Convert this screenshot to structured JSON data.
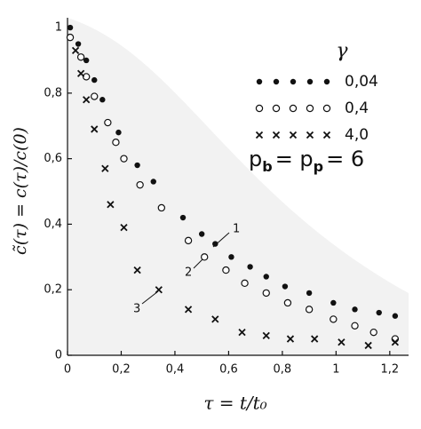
{
  "chart_data": {
    "type": "scatter",
    "x_label": "τ = t/t₀",
    "y_label": "c̃(τ) = c(τ)/c(0)",
    "legend_title": "γ",
    "formula": [
      "p",
      "b",
      "= p",
      "p",
      "= 6"
    ],
    "annotations": [
      "1",
      "2",
      "3"
    ],
    "xlim": [
      0,
      1.27
    ],
    "ylim": [
      0,
      1.03
    ],
    "xticks": [
      0,
      {
        "value": 0.2,
        "label": "0,2"
      },
      {
        "value": 0.4,
        "label": "0,4"
      },
      {
        "value": 0.6,
        "label": "0,6"
      },
      {
        "value": 0.8,
        "label": "0,8"
      },
      {
        "value": 1,
        "label": "1"
      },
      {
        "value": 1.2,
        "label": "1,2"
      }
    ],
    "yticks": [
      0,
      {
        "value": 0.2,
        "label": "0,2"
      },
      {
        "value": 0.4,
        "label": "0,4"
      },
      {
        "value": 0.6,
        "label": "0,6"
      },
      {
        "value": 0.8,
        "label": "0,8"
      },
      1
    ],
    "series": [
      {
        "name": "0,04",
        "marker": "dot",
        "color": "#111111",
        "x": [
          0.01,
          0.04,
          0.07,
          0.1,
          0.13,
          0.19,
          0.26,
          0.32,
          0.43,
          0.5,
          0.55,
          0.61,
          0.68,
          0.74,
          0.81,
          0.9,
          0.99,
          1.07,
          1.16,
          1.22
        ],
        "values": [
          1.0,
          0.95,
          0.9,
          0.84,
          0.78,
          0.68,
          0.58,
          0.53,
          0.42,
          0.37,
          0.34,
          0.3,
          0.27,
          0.24,
          0.21,
          0.19,
          0.16,
          0.14,
          0.13,
          0.12
        ]
      },
      {
        "name": "0,4",
        "marker": "circle",
        "color": "#111111",
        "x": [
          0.01,
          0.05,
          0.07,
          0.1,
          0.15,
          0.18,
          0.21,
          0.27,
          0.35,
          0.45,
          0.51,
          0.59,
          0.66,
          0.74,
          0.82,
          0.9,
          0.99,
          1.07,
          1.14,
          1.22
        ],
        "values": [
          0.97,
          0.91,
          0.85,
          0.79,
          0.71,
          0.65,
          0.6,
          0.52,
          0.45,
          0.35,
          0.3,
          0.26,
          0.22,
          0.19,
          0.16,
          0.14,
          0.11,
          0.09,
          0.07,
          0.05
        ]
      },
      {
        "name": "4,0",
        "marker": "cross",
        "color": "#111111",
        "x": [
          0.03,
          0.05,
          0.07,
          0.1,
          0.14,
          0.16,
          0.21,
          0.26,
          0.34,
          0.45,
          0.55,
          0.65,
          0.74,
          0.83,
          0.92,
          1.02,
          1.12,
          1.22
        ],
        "values": [
          0.93,
          0.86,
          0.78,
          0.69,
          0.57,
          0.46,
          0.39,
          0.26,
          0.2,
          0.14,
          0.11,
          0.07,
          0.06,
          0.05,
          0.05,
          0.04,
          0.03,
          0.04
        ]
      }
    ]
  }
}
